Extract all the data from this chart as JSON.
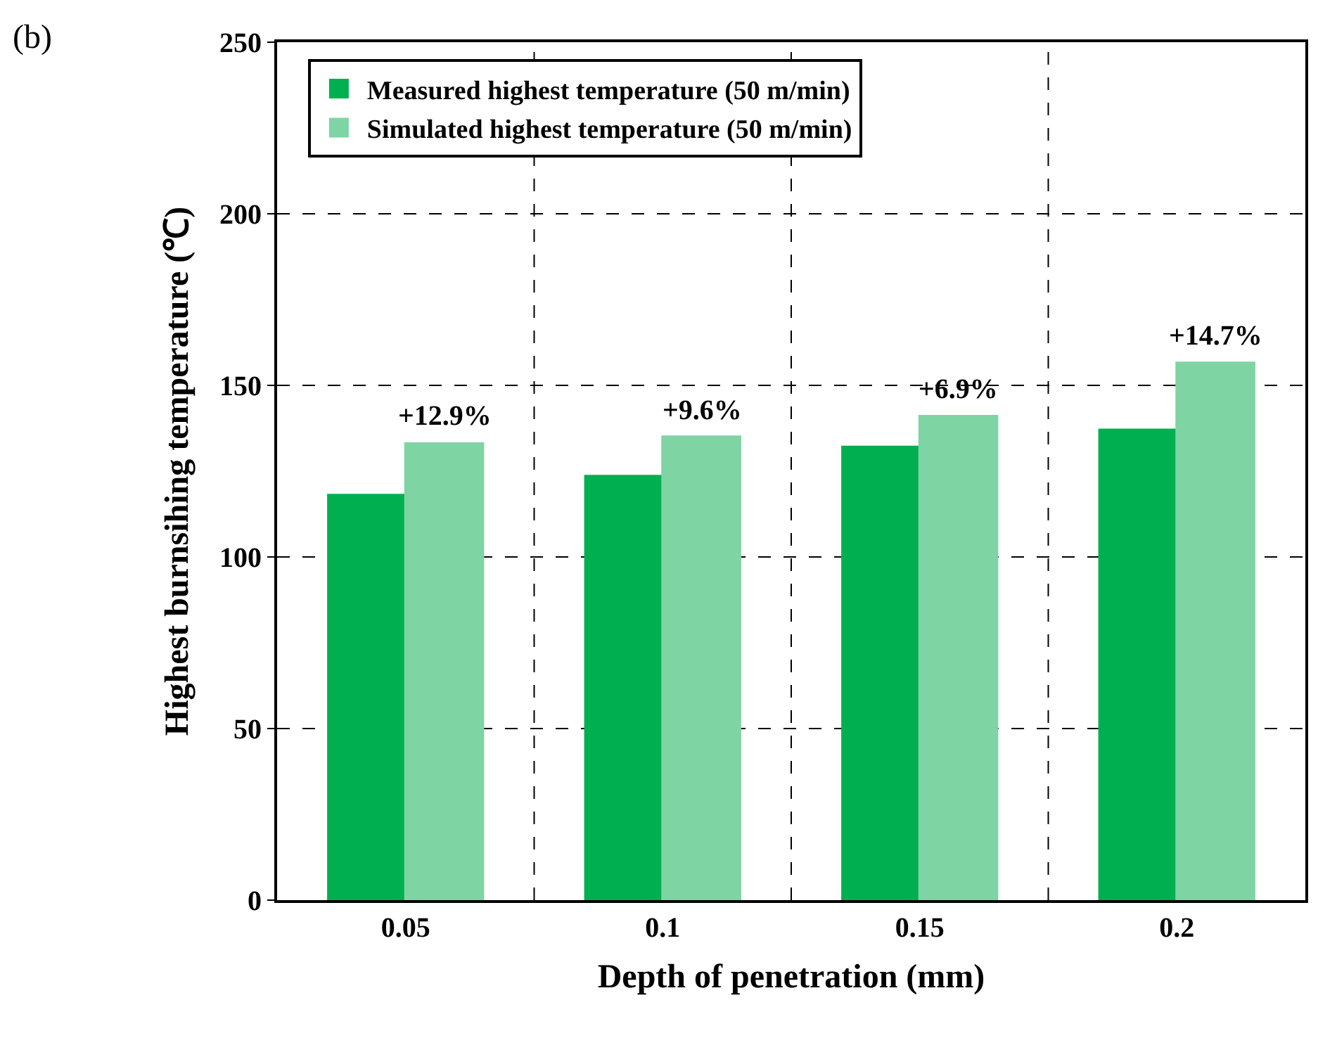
{
  "chart_data": {
    "type": "bar",
    "xlabel": "Depth of penetration (mm)",
    "ylabel": "Highest burnsihing temperature (℃)",
    "categories": [
      "0.05",
      "0.1",
      "0.15",
      "0.2"
    ],
    "series": [
      {
        "name": "Measured highest temperature (50 m/min)",
        "color": "#00b050",
        "values": [
          118,
          123.5,
          132,
          137
        ]
      },
      {
        "name": "Simulated highest temperature (50 m/min)",
        "color": "#7fd4a4",
        "values": [
          133,
          135,
          141,
          156.5
        ]
      }
    ],
    "ylim": [
      0,
      250
    ],
    "yticks": [
      0,
      50,
      100,
      150,
      200,
      250
    ],
    "grid": true,
    "legend": "top left",
    "annotations": [
      "(b)",
      {
        "text": "+12.9%",
        "x": "0.05",
        "y": 133
      },
      {
        "text": "+9.6%",
        "x": "0.1",
        "y": 135
      },
      {
        "text": "+6.9%",
        "x": "0.15",
        "y": 141
      },
      {
        "text": "+14.7%",
        "x": "0.2",
        "y": 156.5
      }
    ]
  }
}
